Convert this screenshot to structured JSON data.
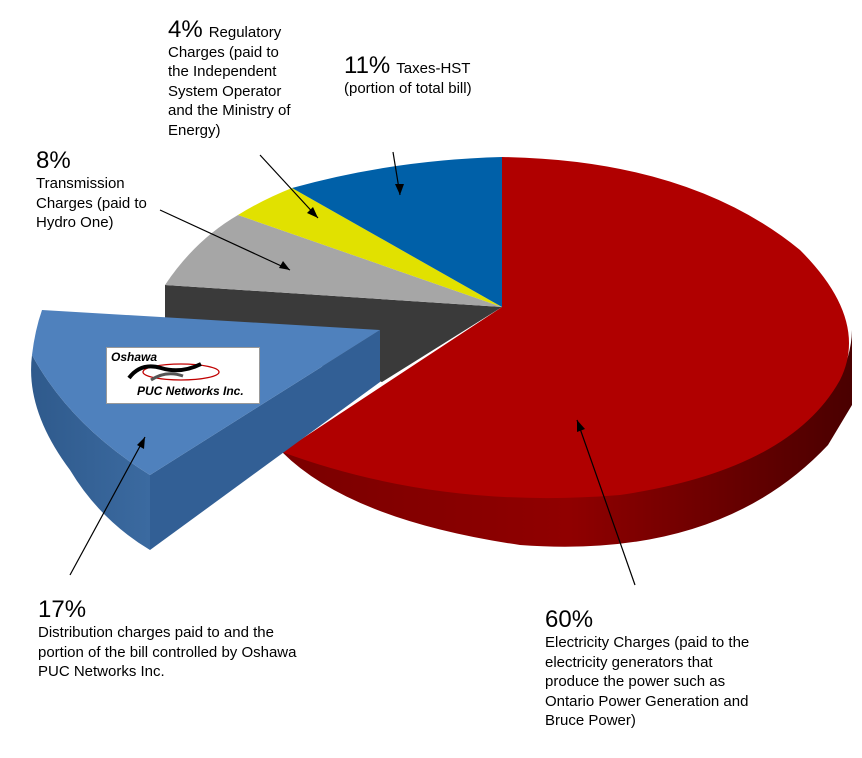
{
  "chart_data": {
    "type": "pie",
    "style": "3d-exploded",
    "slices": [
      {
        "percent": 60,
        "value_label": "60%",
        "label": "Electricity Charges (paid to the electricity generators that produce the power such as Ontario Power Generation and Bruce Power)",
        "color": "#b00000",
        "exploded": false
      },
      {
        "percent": 17,
        "value_label": "17%",
        "label": "Distribution charges paid to and the portion of the bill controlled by Oshawa PUC Networks Inc.",
        "color": "#4f81bd",
        "exploded": true
      },
      {
        "percent": 8,
        "value_label": "8%",
        "label": "Transmission Charges (paid to Hydro One)",
        "color": "#a6a6a6",
        "exploded": false
      },
      {
        "percent": 4,
        "value_label": "4%",
        "label": "Regulatory Charges (paid to the Independent System Operator and the Ministry of Energy)",
        "color": "#e6e600",
        "exploded": false
      },
      {
        "percent": 11,
        "value_label": "11%",
        "label": "Taxes-HST (portion of  total bill)",
        "color": "#0060a8",
        "exploded": false
      }
    ]
  },
  "labels": {
    "electricity": {
      "pct": "60%",
      "lines": [
        "Electricity Charges (paid to the",
        "electricity generators that",
        "produce the power such as",
        "Ontario Power Generation and",
        "Bruce Power)"
      ]
    },
    "distribution": {
      "pct": "17%",
      "lines": [
        "Distribution charges paid to and the",
        "portion of the bill controlled by Oshawa",
        "PUC Networks Inc."
      ]
    },
    "transmission": {
      "pct": "8%",
      "lines": [
        "Transmission",
        "Charges (paid to",
        "Hydro One)"
      ]
    },
    "regulatory": {
      "pct": "4%",
      "first": "Regulatory",
      "lines": [
        "Charges (paid to",
        "the Independent",
        "System Operator",
        "and the Ministry of",
        "Energy)"
      ]
    },
    "taxes": {
      "pct": "11%",
      "first": "Taxes-HST",
      "lines": [
        "(portion of  total bill)"
      ]
    }
  },
  "logo": {
    "top_text": "Oshawa",
    "bottom_text": "PUC Networks Inc."
  }
}
